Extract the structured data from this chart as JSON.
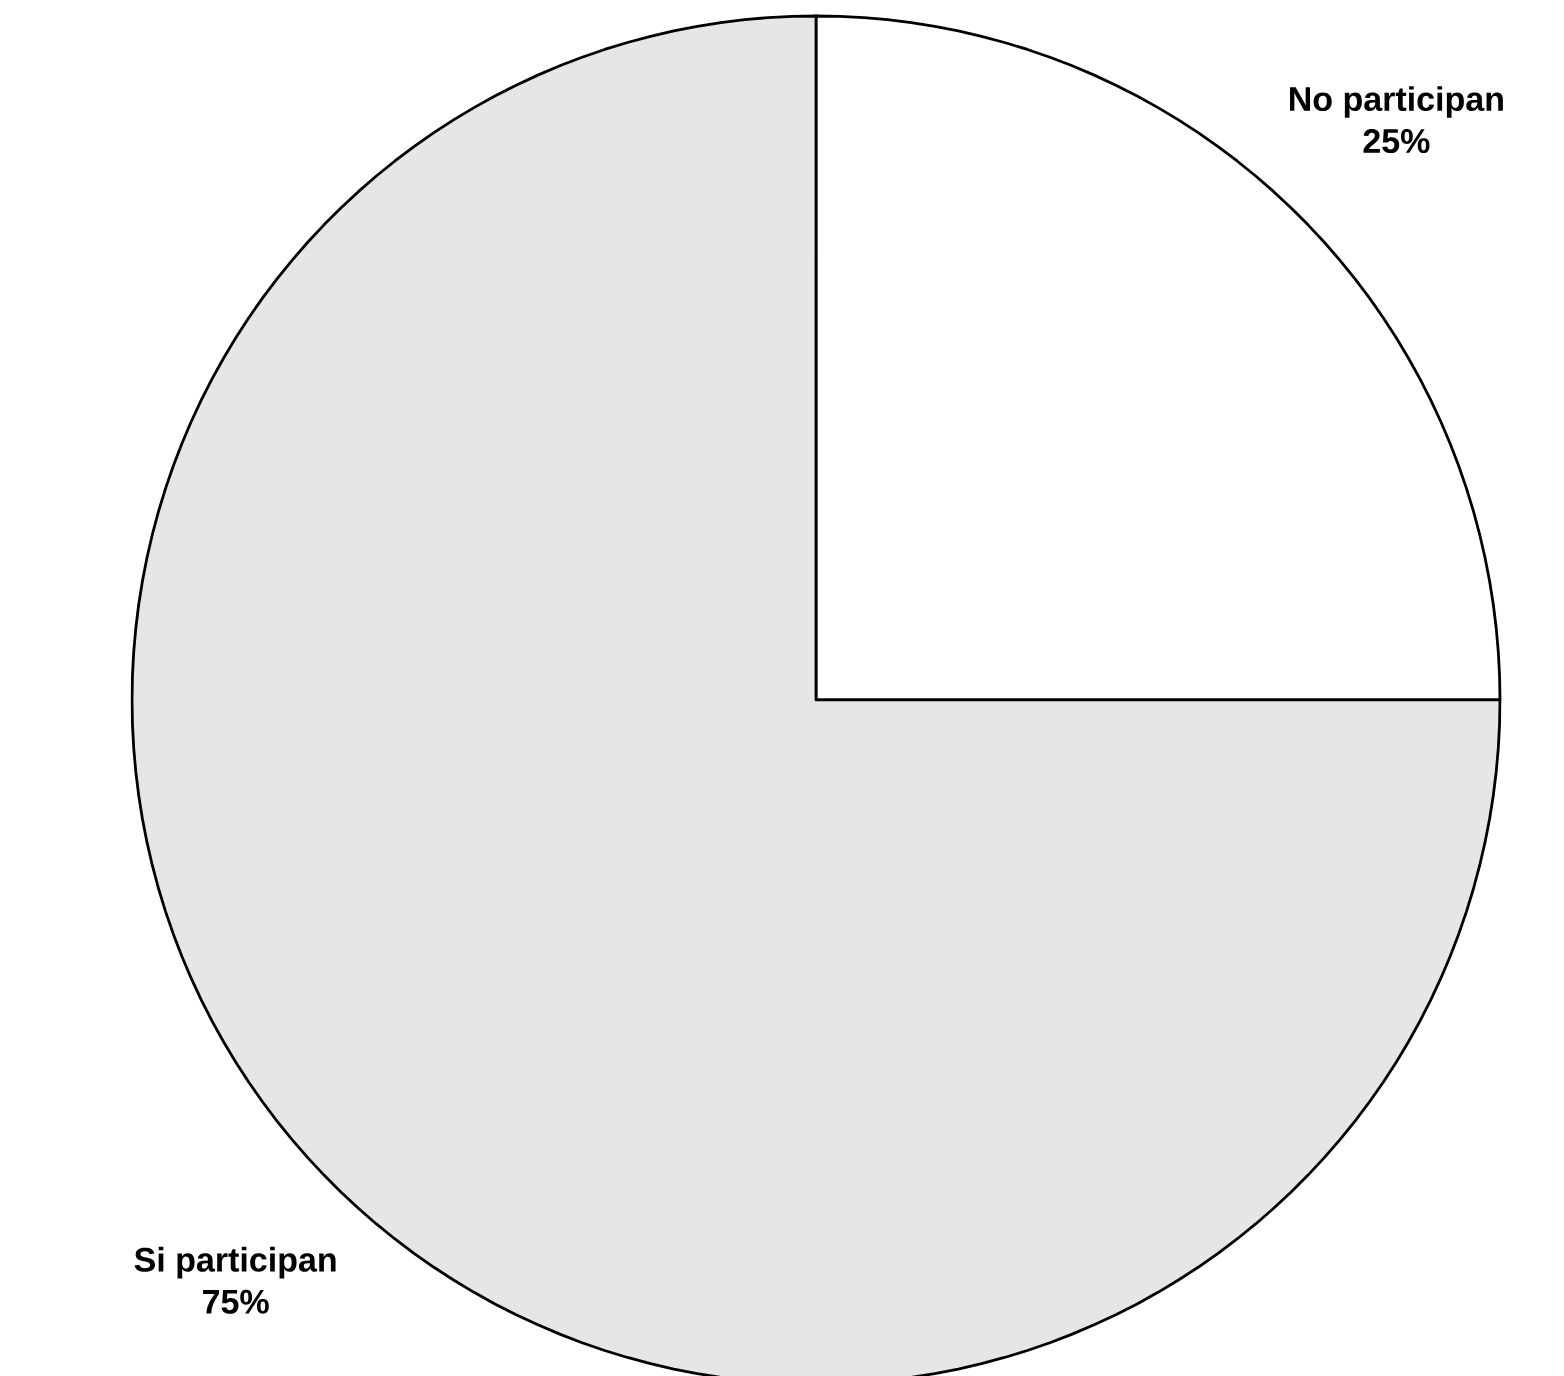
{
  "chart_data": {
    "type": "pie",
    "categories": [
      "No participan",
      "Si participan"
    ],
    "values": [
      25,
      75
    ],
    "value_labels": [
      "25%",
      "75%"
    ],
    "colors": [
      "#ffffff",
      "#e6e6e6"
    ]
  }
}
